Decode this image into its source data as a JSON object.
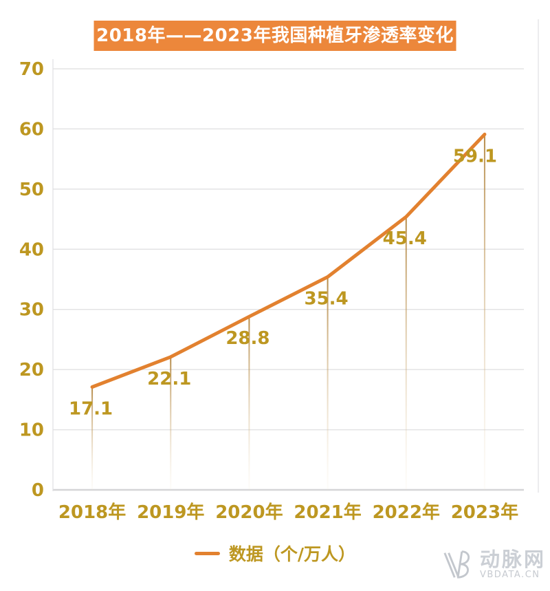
{
  "title": {
    "text": "2018年——2023年我国种植牙渗透率变化"
  },
  "chart_data": {
    "type": "line",
    "title": "2018年——2023年我国种植牙渗透率变化",
    "categories": [
      "2018年",
      "2019年",
      "2020年",
      "2021年",
      "2022年",
      "2023年"
    ],
    "series": [
      {
        "name": "数据（个/万人）",
        "values": [
          17.1,
          22.1,
          28.8,
          35.4,
          45.4,
          59.1
        ]
      }
    ],
    "data_labels": [
      "17.1",
      "22.1",
      "28.8",
      "35.4",
      "45.4",
      "59.1"
    ],
    "xlabel": "",
    "ylabel": "",
    "ylim": [
      0,
      70
    ],
    "yticks": [
      0,
      10,
      20,
      30,
      40,
      50,
      60,
      70
    ],
    "grid": true,
    "legend_position": "bottom"
  },
  "legend": {
    "label": "数据（个/万人）"
  },
  "watermark": {
    "logo": "VB",
    "name": "动脉网",
    "site": "VBDATA.CN"
  },
  "colors": {
    "accent_orange": "#E2812F",
    "title_bg": "#EC873B",
    "gold_text": "#BD9721",
    "gridline": "#E3E3E4",
    "axis_line": "#D5D5D7",
    "plot_border": "#E0E0E2",
    "drop_line_top": "#A87628",
    "drop_line_bottom": "#EBD9BA",
    "watermark_gray": "#C2C6CC"
  }
}
